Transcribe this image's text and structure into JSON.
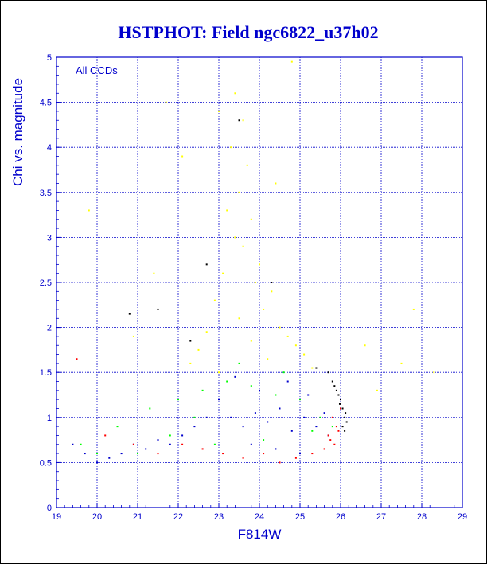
{
  "chart_data": {
    "type": "scatter",
    "title": "HSTPHOT: Field ngc6822_u37h02",
    "xlabel": "F814W",
    "ylabel": "Chi vs. magnitude",
    "annotation": "All CCDs",
    "xlim": [
      19,
      29
    ],
    "ylim": [
      0,
      5
    ],
    "x_ticks": [
      "19",
      "20",
      "21",
      "22",
      "23",
      "24",
      "25",
      "26",
      "27",
      "28",
      "29"
    ],
    "y_ticks": [
      "0",
      "0.5",
      "1",
      "1.5",
      "2",
      "2.5",
      "3",
      "3.5",
      "4",
      "4.5",
      "5"
    ],
    "grid": true,
    "series": [
      {
        "color": "#ffff00",
        "points": [
          [
            23.4,
            4.6
          ],
          [
            23.6,
            4.3
          ],
          [
            23.3,
            4.0
          ],
          [
            23.7,
            3.8
          ],
          [
            23.5,
            3.5
          ],
          [
            23.2,
            3.3
          ],
          [
            23.8,
            3.2
          ],
          [
            23.4,
            3.0
          ],
          [
            23.6,
            2.9
          ],
          [
            24.0,
            2.7
          ],
          [
            23.1,
            2.6
          ],
          [
            23.9,
            2.5
          ],
          [
            24.3,
            2.4
          ],
          [
            22.9,
            2.3
          ],
          [
            24.1,
            2.2
          ],
          [
            23.5,
            2.1
          ],
          [
            24.5,
            2.0
          ],
          [
            22.7,
            1.95
          ],
          [
            24.7,
            1.9
          ],
          [
            23.8,
            1.85
          ],
          [
            24.9,
            1.8
          ],
          [
            22.5,
            1.75
          ],
          [
            25.1,
            1.7
          ],
          [
            24.2,
            1.65
          ],
          [
            22.3,
            1.6
          ],
          [
            25.3,
            1.55
          ],
          [
            23.0,
            1.5
          ],
          [
            26.6,
            1.8
          ],
          [
            27.5,
            1.6
          ],
          [
            26.9,
            1.3
          ],
          [
            27.8,
            2.2
          ],
          [
            28.3,
            1.5
          ],
          [
            21.4,
            2.6
          ],
          [
            20.9,
            1.9
          ],
          [
            19.8,
            3.3
          ],
          [
            21.7,
            4.5
          ],
          [
            24.8,
            4.95
          ],
          [
            22.1,
            3.9
          ],
          [
            24.4,
            3.6
          ],
          [
            23.0,
            4.4
          ]
        ]
      },
      {
        "color": "#00ff00",
        "points": [
          [
            20.5,
            0.9
          ],
          [
            21.3,
            1.1
          ],
          [
            22.0,
            1.2
          ],
          [
            22.6,
            1.3
          ],
          [
            23.2,
            1.4
          ],
          [
            23.8,
            1.35
          ],
          [
            24.4,
            1.25
          ],
          [
            25.0,
            1.2
          ],
          [
            25.5,
            1.0
          ],
          [
            21.8,
            0.8
          ],
          [
            22.9,
            0.7
          ],
          [
            24.1,
            0.75
          ],
          [
            25.3,
            0.85
          ],
          [
            20.0,
            0.6
          ],
          [
            23.5,
            1.6
          ],
          [
            24.6,
            1.5
          ],
          [
            22.4,
            1.0
          ],
          [
            19.6,
            0.7
          ],
          [
            21.0,
            0.6
          ],
          [
            25.8,
            0.9
          ]
        ]
      },
      {
        "color": "#0000cc",
        "points": [
          [
            23.3,
            1.0
          ],
          [
            23.6,
            0.9
          ],
          [
            23.9,
            1.05
          ],
          [
            24.2,
            0.95
          ],
          [
            24.5,
            1.1
          ],
          [
            24.8,
            0.85
          ],
          [
            25.1,
            1.0
          ],
          [
            25.4,
            0.9
          ],
          [
            25.7,
            0.8
          ],
          [
            23.0,
            1.2
          ],
          [
            22.7,
            1.0
          ],
          [
            22.4,
            0.9
          ],
          [
            22.1,
            0.8
          ],
          [
            21.8,
            0.7
          ],
          [
            21.5,
            0.75
          ],
          [
            21.2,
            0.65
          ],
          [
            20.9,
            0.7
          ],
          [
            20.6,
            0.6
          ],
          [
            20.3,
            0.55
          ],
          [
            20.0,
            0.5
          ],
          [
            19.7,
            0.6
          ],
          [
            19.4,
            0.7
          ],
          [
            24.0,
            1.3
          ],
          [
            24.7,
            1.4
          ],
          [
            25.2,
            1.25
          ],
          [
            23.4,
            1.45
          ],
          [
            25.6,
            1.05
          ],
          [
            23.8,
            0.7
          ],
          [
            24.4,
            0.65
          ],
          [
            25.0,
            0.6
          ]
        ]
      },
      {
        "color": "#ff0000",
        "points": [
          [
            25.8,
            1.0
          ],
          [
            25.9,
            0.9
          ],
          [
            25.7,
            0.8
          ],
          [
            25.85,
            0.7
          ],
          [
            25.6,
            0.65
          ],
          [
            25.3,
            0.6
          ],
          [
            24.9,
            0.55
          ],
          [
            24.5,
            0.5
          ],
          [
            24.1,
            0.6
          ],
          [
            23.6,
            0.55
          ],
          [
            23.1,
            0.6
          ],
          [
            22.6,
            0.65
          ],
          [
            22.1,
            0.7
          ],
          [
            21.5,
            0.6
          ],
          [
            20.9,
            0.7
          ],
          [
            20.2,
            0.8
          ],
          [
            19.5,
            1.65
          ],
          [
            26.0,
            1.1
          ],
          [
            25.95,
            0.85
          ],
          [
            25.75,
            0.75
          ]
        ]
      },
      {
        "color": "#000000",
        "points": [
          [
            26.1,
            1.0
          ],
          [
            26.05,
            1.1
          ],
          [
            26.0,
            1.2
          ],
          [
            25.9,
            1.3
          ],
          [
            25.8,
            1.4
          ],
          [
            25.7,
            1.5
          ],
          [
            26.15,
            0.95
          ],
          [
            26.1,
            0.85
          ],
          [
            25.95,
            1.25
          ],
          [
            25.85,
            1.35
          ],
          [
            23.5,
            4.3
          ],
          [
            22.7,
            2.7
          ],
          [
            21.5,
            2.2
          ],
          [
            20.8,
            2.15
          ],
          [
            24.3,
            2.5
          ],
          [
            22.3,
            1.85
          ],
          [
            25.4,
            1.55
          ],
          [
            26.05,
            0.9
          ],
          [
            26.12,
            1.05
          ],
          [
            25.98,
            1.15
          ]
        ]
      }
    ]
  }
}
